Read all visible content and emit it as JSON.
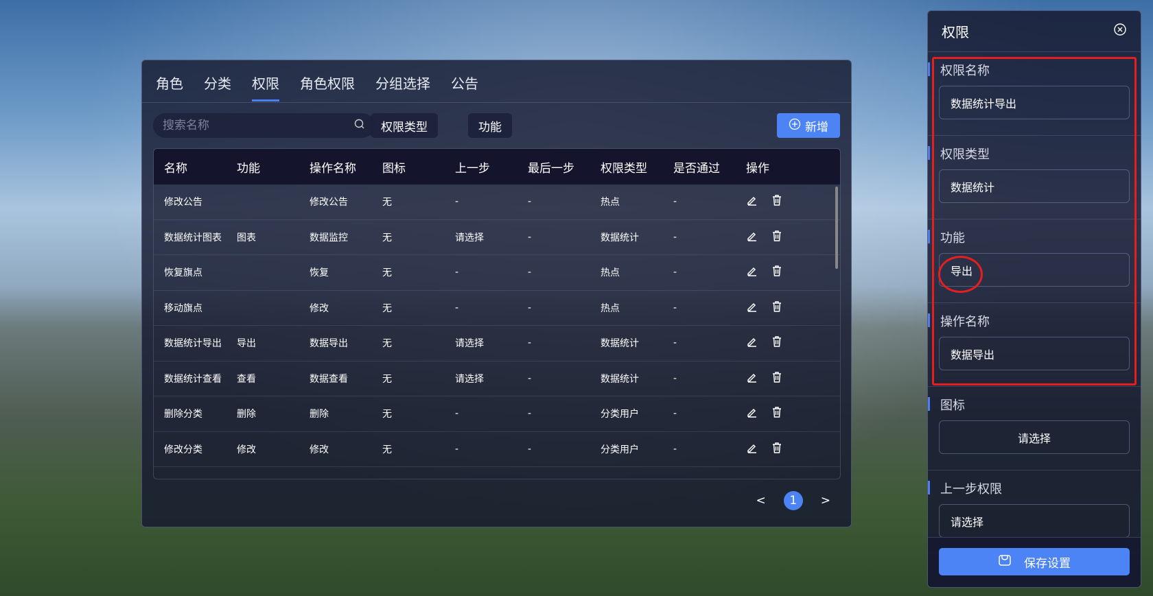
{
  "tabs": [
    "角色",
    "分类",
    "权限",
    "角色权限",
    "分组选择",
    "公告"
  ],
  "active_tab": "权限",
  "search": {
    "placeholder": "搜索名称"
  },
  "filters": [
    "权限类型",
    "功能"
  ],
  "add_label": "新增",
  "columns": [
    "名称",
    "功能",
    "操作名称",
    "图标",
    "上一步",
    "最后一步",
    "权限类型",
    "是否通过",
    "操作"
  ],
  "rows": [
    [
      "修改公告",
      "",
      "修改公告",
      "无",
      "-",
      "-",
      "热点",
      "-"
    ],
    [
      "数据统计图表",
      "图表",
      "数据监控",
      "无",
      "请选择",
      "-",
      "数据统计",
      "-"
    ],
    [
      "恢复旗点",
      "",
      "恢复",
      "无",
      "-",
      "-",
      "热点",
      "-"
    ],
    [
      "移动旗点",
      "",
      "修改",
      "无",
      "-",
      "-",
      "热点",
      "-"
    ],
    [
      "数据统计导出",
      "导出",
      "数据导出",
      "无",
      "请选择",
      "-",
      "数据统计",
      "-"
    ],
    [
      "数据统计查看",
      "查看",
      "数据查看",
      "无",
      "请选择",
      "-",
      "数据统计",
      "-"
    ],
    [
      "删除分类",
      "删除",
      "删除",
      "无",
      "-",
      "-",
      "分类用户",
      "-"
    ],
    [
      "修改分类",
      "修改",
      "修改",
      "无",
      "-",
      "-",
      "分类用户",
      "-"
    ]
  ],
  "pager": {
    "prev": "<",
    "current": "1",
    "next": ">"
  },
  "side": {
    "title": "权限",
    "fields": [
      {
        "label": "权限名称",
        "value": "数据统计导出"
      },
      {
        "label": "权限类型",
        "value": "数据统计"
      },
      {
        "label": "功能",
        "value": "导出"
      },
      {
        "label": "操作名称",
        "value": "数据导出"
      },
      {
        "label": "图标",
        "value": "请选择"
      },
      {
        "label": "上一步权限",
        "value": "请选择"
      }
    ],
    "save_label": "保存设置"
  },
  "colors": {
    "accent": "#4d84f5",
    "highlight": "#e51f1f"
  }
}
